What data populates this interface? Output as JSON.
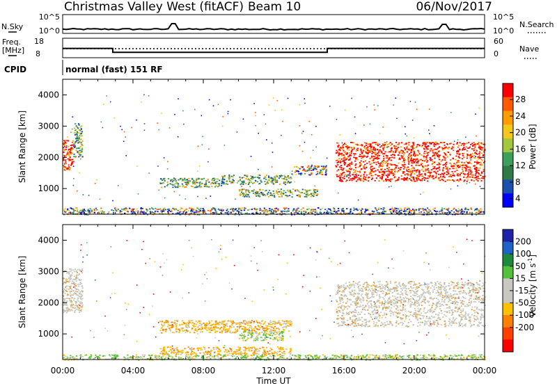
{
  "header": {
    "station": "Christmas Valley West (fitACF)",
    "beam": "Beam 10",
    "date": "06/Nov/2017"
  },
  "top_panels": {
    "nsky_label": "N.Sky",
    "nsky_ticks": [
      "10^5",
      "10^0"
    ],
    "nsearch_label": "N.Search",
    "nsearch_ticks": [
      "10^5",
      "10^0"
    ],
    "freq_label_1": "Freq.",
    "freq_label_2": "[MHz]",
    "freq_ticks": [
      "18",
      "8"
    ],
    "nave_label": "Nave",
    "nave_ticks": [
      "60",
      "0"
    ],
    "cpid_label": "CPID",
    "cpid_text": "normal (fast) 151 RF"
  },
  "colors": {
    "power": [
      "#0000ff",
      "#1a50b0",
      "#2f7a46",
      "#3aa05a",
      "#a3c83b",
      "#f4c81a",
      "#ff9d00",
      "#ff5a00",
      "#ff0000"
    ],
    "velocity": [
      "#1d22a8",
      "#1f62c8",
      "#1c8a3a",
      "#55c13a",
      "#c8c8c0",
      "#c8c8c0",
      "#ffc000",
      "#ff8000",
      "#ff4000",
      "#ff0000"
    ],
    "gray": "#c8c8c0"
  },
  "chart_data": [
    {
      "type": "line",
      "panel": "sounding counts",
      "ylabel_left": "N.Sky",
      "ylabel_right": "N.Search",
      "y_ticks_left": [
        "10^5",
        "10^0"
      ],
      "y_ticks_right": [
        "10^5",
        "10^0"
      ]
    },
    {
      "type": "line",
      "panel": "frequency and averages",
      "ylabel_left": "Freq. [MHz]",
      "ylim_left": [
        8,
        18
      ],
      "ylabel_right": "Nave",
      "ylim_right": [
        0,
        60
      ],
      "frequency_steps": [
        {
          "from_hour": 0.0,
          "to_hour": 2.85,
          "value": 12.8
        },
        {
          "from_hour": 2.85,
          "to_hour": 15.05,
          "value": 10.8
        },
        {
          "from_hour": 15.05,
          "to_hour": 24.0,
          "value": 12.8
        }
      ]
    },
    {
      "type": "heatmap",
      "panel": "power",
      "xlabel": "Time UT",
      "ylabel": "Slant Range [km]",
      "xlim": [
        0,
        24
      ],
      "ylim": [
        180,
        4500
      ],
      "x_ticks": [
        "00:00",
        "04:00",
        "08:00",
        "12:00",
        "16:00",
        "20:00",
        "00:00"
      ],
      "y_ticks": [
        1000,
        2000,
        3000,
        4000
      ],
      "colorbar_label": "Power [dB]",
      "colorbar_ticks": [
        "4",
        "8",
        "12",
        "16",
        "20",
        "24",
        "28"
      ],
      "colorbar_range": [
        0,
        30
      ],
      "regions": [
        {
          "t0": 0.0,
          "t1": 0.6,
          "r0": 1600,
          "r1": 2600,
          "level": "high"
        },
        {
          "t0": 0.6,
          "t1": 1.1,
          "r0": 2000,
          "r1": 3100,
          "level": "mid"
        },
        {
          "t0": 5.5,
          "t1": 9.0,
          "r0": 1050,
          "r1": 1350,
          "level": "mid"
        },
        {
          "t0": 9.0,
          "t1": 13.0,
          "r0": 1150,
          "r1": 1450,
          "level": "mid"
        },
        {
          "t0": 10.0,
          "t1": 14.5,
          "r0": 750,
          "r1": 1000,
          "level": "mid"
        },
        {
          "t0": 13.0,
          "t1": 15.0,
          "r0": 1450,
          "r1": 1750,
          "level": "low"
        },
        {
          "t0": 15.5,
          "t1": 24.0,
          "r0": 1250,
          "r1": 2500,
          "level": "high"
        },
        {
          "t0": 0.0,
          "t1": 24.0,
          "r0": 180,
          "r1": 400,
          "level": "low"
        }
      ]
    },
    {
      "type": "heatmap",
      "panel": "velocity",
      "xlabel": "Time UT",
      "ylabel": "Slant Range [km]",
      "xlim": [
        0,
        24
      ],
      "ylim": [
        180,
        4500
      ],
      "x_ticks": [
        "00:00",
        "04:00",
        "08:00",
        "12:00",
        "16:00",
        "20:00",
        "00:00"
      ],
      "y_ticks": [
        1000,
        2000,
        3000,
        4000
      ],
      "colorbar_label": "Velocity [m s^-1]",
      "colorbar_ticks": [
        "200",
        "100",
        "50",
        "15",
        "-15",
        "-50",
        "-100",
        "-200"
      ],
      "colorbar_range": [
        -250,
        250
      ],
      "regions": [
        {
          "t0": 0.0,
          "t1": 1.1,
          "r0": 1700,
          "r1": 3100,
          "level": "gray"
        },
        {
          "t0": 5.5,
          "t1": 13.0,
          "r0": 1050,
          "r1": 1450,
          "level": "orange"
        },
        {
          "t0": 10.0,
          "t1": 12.5,
          "r0": 800,
          "r1": 1100,
          "level": "green"
        },
        {
          "t0": 5.5,
          "t1": 13.0,
          "r0": 350,
          "r1": 600,
          "level": "orange"
        },
        {
          "t0": 15.5,
          "t1": 24.0,
          "r0": 1250,
          "r1": 2700,
          "level": "gray"
        },
        {
          "t0": 0.0,
          "t1": 24.0,
          "r0": 180,
          "r1": 350,
          "level": "green"
        }
      ]
    }
  ]
}
